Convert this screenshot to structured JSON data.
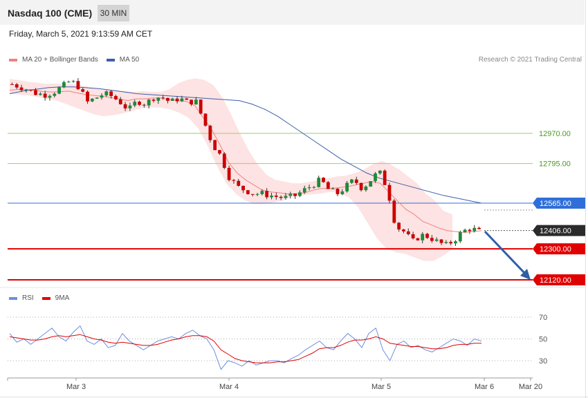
{
  "header": {
    "instrument": "Nasdaq 100 (CME)",
    "timeframe": "30 MIN",
    "datetime": "Friday, March 5, 2021 9:13:59 AM CET"
  },
  "legend": {
    "ma20_label": "MA 20 + Bollinger Bands",
    "ma50_label": "MA 50",
    "copyright": "Research © 2021 Trading Central"
  },
  "rsi_legend": {
    "rsi_label": "RSI",
    "ma_label": "9MA"
  },
  "colors": {
    "ma20": "#f08080",
    "ma50": "#3d5fa8",
    "bollinger_fill": "#fde3e3",
    "candle_up": "#1f8a3a",
    "candle_down": "#cc0000",
    "resistance": "#9bcf70",
    "pivot": "#2f6fd8",
    "support": "#e00000",
    "arrow": "#2f5ea8",
    "rsi": "#6b8fe0",
    "rsi_ma": "#e00000"
  },
  "chart_data": {
    "type": "candlestick",
    "instrument": "Nasdaq 100 (CME)",
    "timeframe": "30 MIN",
    "price_levels": [
      {
        "value": 12970.0,
        "label": "12970.00",
        "kind": "resistance"
      },
      {
        "value": 12795.0,
        "label": "12795.00",
        "kind": "resistance"
      },
      {
        "value": 12565.0,
        "label": "12565.00",
        "kind": "pivot"
      },
      {
        "value": 12406.0,
        "label": "12406.00",
        "kind": "last"
      },
      {
        "value": 12300.0,
        "label": "12300.00",
        "kind": "support"
      },
      {
        "value": 12120.0,
        "label": "12120.00",
        "kind": "support"
      }
    ],
    "x_labels": [
      "Mar 3",
      "Mar 4",
      "Mar 5",
      "Mar 6",
      "Mar 20"
    ],
    "price_close_path": [
      13255,
      13240,
      13220,
      13200,
      13195,
      13210,
      13240,
      13275,
      13240,
      13150,
      13175,
      13200,
      13185,
      13150,
      13105,
      13160,
      13140,
      13180,
      13180,
      13150,
      13175,
      13150,
      13160,
      13040,
      12910,
      12840,
      12720,
      12660,
      12640,
      12620,
      12620,
      12610,
      12600,
      12595,
      12610,
      12640,
      12670,
      12700,
      12640,
      12620,
      12660,
      12700,
      12650,
      12700,
      12750,
      12650,
      12430,
      12400,
      12340,
      12380,
      12370,
      12340,
      12320,
      12350,
      12400,
      12420,
      12400
    ],
    "ma20_path": [
      13220,
      13225,
      13225,
      13220,
      13212,
      13210,
      13212,
      13215,
      13205,
      13195,
      13190,
      13185,
      13178,
      13170,
      13160,
      13170,
      13170,
      13175,
      13175,
      13165,
      13160,
      13155,
      13130,
      13060,
      12990,
      12900,
      12800,
      12740,
      12700,
      12670,
      12640,
      12630,
      12625,
      12618,
      12620,
      12625,
      12640,
      12650,
      12650,
      12655,
      12660,
      12670,
      12680,
      12690,
      12680,
      12630,
      12580,
      12530,
      12500,
      12460,
      12440,
      12420,
      12405,
      12400,
      12395,
      12400,
      12405
    ],
    "bb_upper_path": [
      13285,
      13280,
      13270,
      13265,
      13258,
      13260,
      13258,
      13255,
      13250,
      13240,
      13230,
      13225,
      13220,
      13215,
      13210,
      13215,
      13210,
      13210,
      13225,
      13260,
      13280,
      13290,
      13280,
      13250,
      13180,
      13080,
      12970,
      12870,
      12790,
      12730,
      12700,
      12690,
      12680,
      12680,
      12690,
      12700,
      12710,
      12720,
      12725,
      12740,
      12760,
      12790,
      12810,
      12790,
      12760,
      12720,
      12680,
      12620,
      12580,
      12520,
      12500
    ],
    "bb_lower_path": [
      13200,
      13195,
      13190,
      13180,
      13170,
      13160,
      13140,
      13120,
      13100,
      13080,
      13070,
      13075,
      13085,
      13100,
      13115,
      13120,
      13120,
      13110,
      13090,
      13060,
      13000,
      12900,
      12780,
      12680,
      12620,
      12580,
      12560,
      12560,
      12570,
      12580,
      12600,
      12610,
      12615,
      12620,
      12630,
      12625,
      12600,
      12540,
      12450,
      12360,
      12300,
      12280,
      12270,
      12250,
      12230,
      12230,
      12260,
      12300
    ],
    "ma50_path": [
      13200,
      13215,
      13225,
      13235,
      13240,
      13240,
      13235,
      13230,
      13220,
      13210,
      13200,
      13195,
      13190,
      13185,
      13180,
      13175,
      13170,
      13165,
      13160,
      13140,
      13110,
      13070,
      13020,
      12970,
      12920,
      12870,
      12820,
      12780,
      12740,
      12710,
      12690,
      12670,
      12650,
      12630,
      12610,
      12595,
      12580,
      12565
    ],
    "rsi": {
      "levels": [
        70,
        50,
        30
      ],
      "ylim": [
        15,
        75
      ],
      "rsi_values": [
        55,
        47,
        50,
        45,
        50,
        55,
        60,
        52,
        48,
        56,
        62,
        48,
        45,
        50,
        42,
        44,
        55,
        48,
        44,
        40,
        44,
        48,
        50,
        52,
        50,
        55,
        58,
        53,
        50,
        40,
        22,
        30,
        28,
        25,
        30,
        26,
        28,
        30,
        30,
        28,
        32,
        35,
        40,
        44,
        48,
        42,
        40,
        48,
        55,
        50,
        42,
        55,
        60,
        40,
        30,
        45,
        48,
        42,
        44,
        40,
        38,
        42,
        46,
        50,
        48,
        44,
        50,
        48
      ],
      "ma_values": [
        52,
        51,
        50,
        49,
        49,
        50,
        52,
        53,
        52,
        53,
        54,
        52,
        50,
        49,
        47,
        46,
        47,
        46,
        45,
        44,
        44,
        45,
        47,
        49,
        50,
        52,
        53,
        53,
        52,
        48,
        40,
        36,
        32,
        30,
        29,
        28,
        28,
        28,
        29,
        29,
        30,
        31,
        34,
        37,
        41,
        42,
        42,
        44,
        47,
        49,
        49,
        50,
        52,
        50,
        46,
        45,
        44,
        43,
        43,
        42,
        41,
        41,
        42,
        44,
        45,
        45,
        46,
        46
      ]
    }
  }
}
